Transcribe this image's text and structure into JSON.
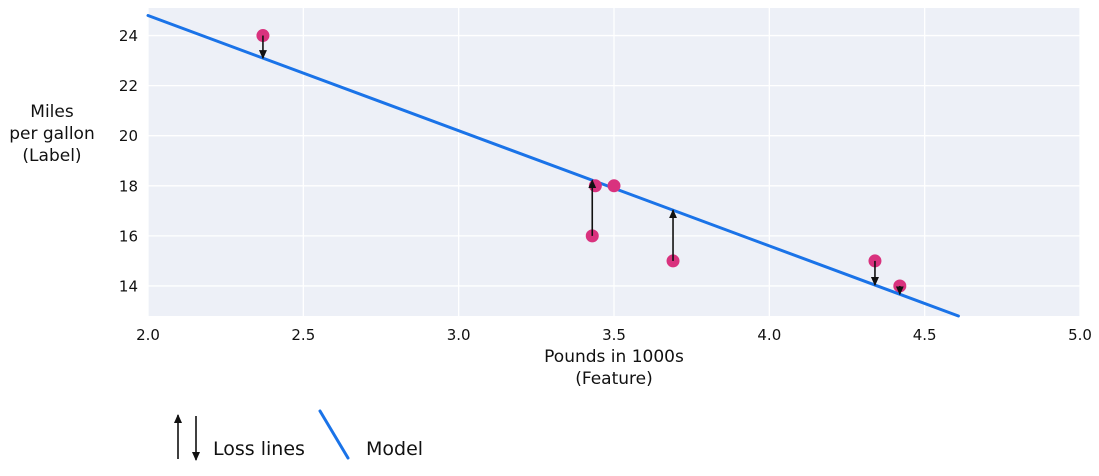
{
  "chart_data": {
    "type": "scatter",
    "title": "",
    "xlabel_lines": [
      "Pounds in 1000s",
      "(Feature)"
    ],
    "ylabel_lines": [
      "Miles",
      "per gallon",
      "(Label)"
    ],
    "xlim": [
      2.0,
      5.0
    ],
    "ylim": [
      12.8,
      25.1
    ],
    "grid": true,
    "x_ticks": [
      {
        "v": 2.0,
        "label": "2.0"
      },
      {
        "v": 2.5,
        "label": "2.5"
      },
      {
        "v": 3.0,
        "label": "3.0"
      },
      {
        "v": 3.5,
        "label": "3.5"
      },
      {
        "v": 4.0,
        "label": "4.0"
      },
      {
        "v": 4.5,
        "label": "4.5"
      },
      {
        "v": 5.0,
        "label": "5.0"
      }
    ],
    "y_ticks": [
      {
        "v": 14,
        "label": "14"
      },
      {
        "v": 16,
        "label": "16"
      },
      {
        "v": 18,
        "label": "18"
      },
      {
        "v": 20,
        "label": "20"
      },
      {
        "v": 22,
        "label": "22"
      },
      {
        "v": 24,
        "label": "24"
      }
    ],
    "points": [
      {
        "x": 2.37,
        "y": 24,
        "loss_arrow": true
      },
      {
        "x": 3.43,
        "y": 16,
        "loss_arrow": true
      },
      {
        "x": 3.44,
        "y": 18,
        "loss_arrow": false
      },
      {
        "x": 3.5,
        "y": 18,
        "loss_arrow": false
      },
      {
        "x": 3.69,
        "y": 15,
        "loss_arrow": true
      },
      {
        "x": 4.34,
        "y": 15,
        "loss_arrow": true
      },
      {
        "x": 4.42,
        "y": 14,
        "loss_arrow": true
      }
    ],
    "model": {
      "slope": -4.6,
      "intercept": 34.0
    }
  },
  "legend": {
    "loss_label": "Loss lines",
    "model_label": "Model"
  },
  "colors": {
    "model_line": "#1a73e8",
    "point": "#d9327e",
    "plot_bg": "#edf0f7",
    "grid": "#ffffff",
    "arrow": "#111111",
    "text": "#111111"
  }
}
